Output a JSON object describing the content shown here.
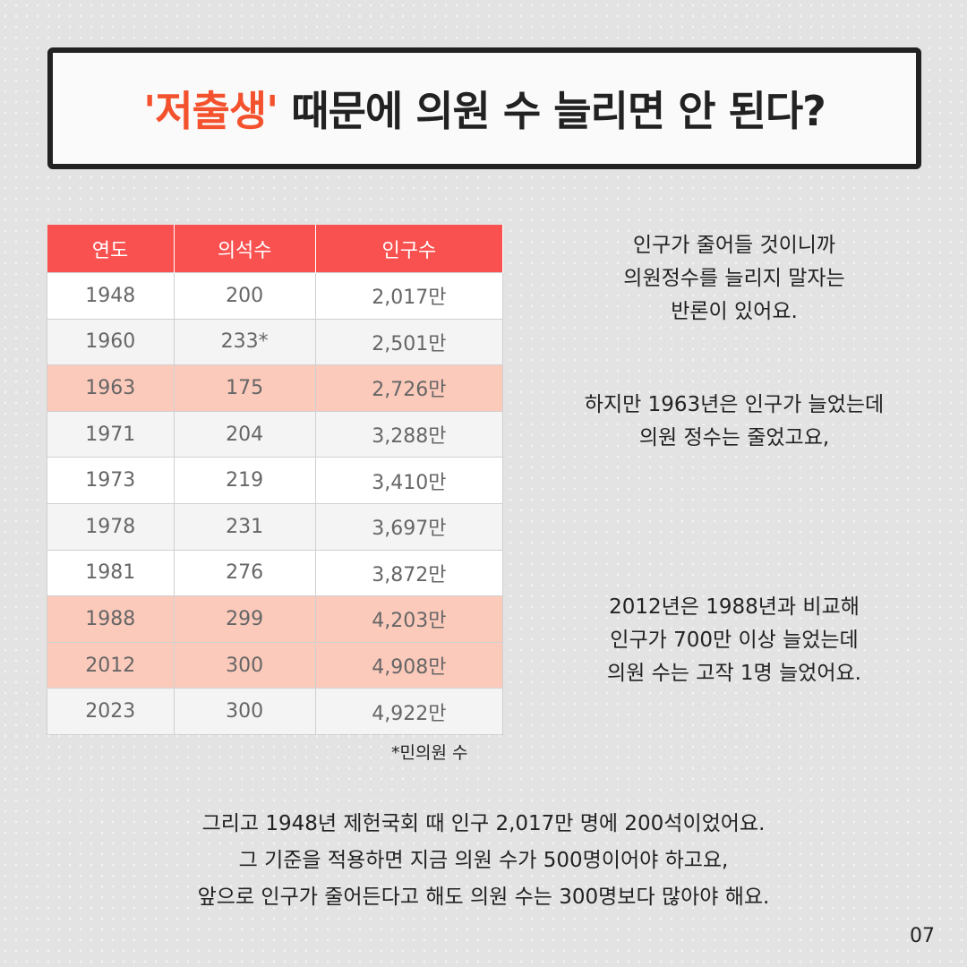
{
  "title": {
    "highlight": "'저출생'",
    "rest": " 때문에 의원 수 늘리면 안 된다?"
  },
  "table": {
    "headers": [
      "연도",
      "의석수",
      "인구수"
    ],
    "rows": [
      {
        "year": "1948",
        "seats": "200",
        "pop": "2,017만",
        "highlight": false
      },
      {
        "year": "1960",
        "seats": "233*",
        "pop": "2,501만",
        "highlight": false
      },
      {
        "year": "1963",
        "seats": "175",
        "pop": "2,726만",
        "highlight": true
      },
      {
        "year": "1971",
        "seats": "204",
        "pop": "3,288만",
        "highlight": false
      },
      {
        "year": "1973",
        "seats": "219",
        "pop": "3,410만",
        "highlight": false
      },
      {
        "year": "1978",
        "seats": "231",
        "pop": "3,697만",
        "highlight": false
      },
      {
        "year": "1981",
        "seats": "276",
        "pop": "3,872만",
        "highlight": false
      },
      {
        "year": "1988",
        "seats": "299",
        "pop": "4,203만",
        "highlight": true
      },
      {
        "year": "2012",
        "seats": "300",
        "pop": "4,908만",
        "highlight": true
      },
      {
        "year": "2023",
        "seats": "300",
        "pop": "4,922만",
        "highlight": false
      }
    ],
    "footnote": "*민의원 수"
  },
  "side": {
    "p1": [
      "인구가 줄어들 것이니까",
      "의원정수를 늘리지 말자는",
      "반론이 있어요."
    ],
    "p2": [
      "하지만 1963년은 인구가 늘었는데",
      "의원 정수는 줄었고요,"
    ],
    "p3": [
      "2012년은 1988년과 비교해",
      "인구가 700만 이상 늘었는데",
      "의원 수는 고작 1명 늘었어요."
    ]
  },
  "bottom": [
    "그리고 1948년 제헌국회 때 인구 2,017만 명에 200석이었어요.",
    "그 기준을 적용하면 지금 의원 수가 500명이어야 하고요,",
    "앞으로 인구가 줄어든다고 해도 의원 수는 300명보다 많아야 해요."
  ],
  "page_number": "07",
  "colors": {
    "accent": "#f4522e",
    "header": "#f95050",
    "highlight_row": "#fccabb"
  }
}
